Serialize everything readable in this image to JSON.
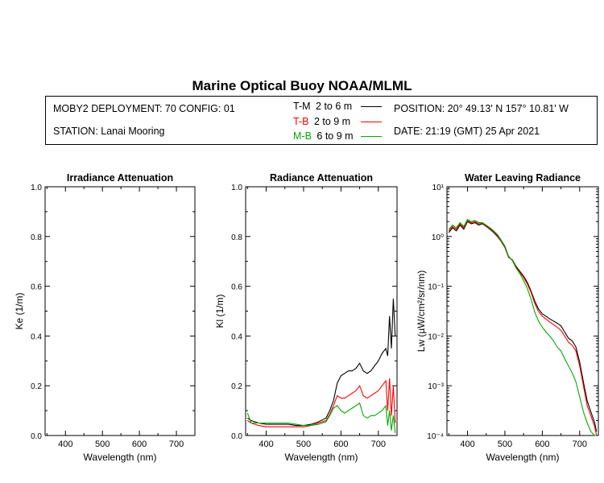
{
  "header": {
    "title": "Marine Optical Buoy NOAA/MLML",
    "deployment": "MOBY2 DEPLOYMENT: 70 CONFIG: 01",
    "station": "STATION: Lanai Mooring",
    "position": "POSITION: 20° 49.13' N   157° 10.81' W",
    "date": "DATE: 21:19 (GMT) 25 Apr 2021"
  },
  "legend": [
    {
      "code": "T-M",
      "range": "2 to 6  m",
      "color": "#000000"
    },
    {
      "code": "T-B",
      "range": "2 to 9  m",
      "color": "#ff0000"
    },
    {
      "code": "M-B",
      "range": "6 to 9  m",
      "color": "#00aa00"
    }
  ],
  "chart_data": [
    {
      "type": "line",
      "title": "Irradiance Attenuation",
      "xlabel": "Wavelength (nm)",
      "ylabel": "Ke  (1/m)",
      "xlim": [
        345,
        750
      ],
      "ylim": [
        0,
        1
      ],
      "xticks": [
        "400",
        "500",
        "600",
        "700"
      ],
      "yticks": [
        "0.0",
        "0.2",
        "0.4",
        "0.6",
        "0.8",
        "1.0"
      ],
      "series": []
    },
    {
      "type": "line",
      "title": "Radiance Attenuation",
      "xlabel": "Wavelength (nm)",
      "ylabel": "Kl  (1/m)",
      "xlim": [
        345,
        750
      ],
      "ylim": [
        0,
        1
      ],
      "xticks": [
        "400",
        "500",
        "600",
        "700"
      ],
      "yticks": [
        "0.0",
        "0.2",
        "0.4",
        "0.6",
        "0.8",
        "1.0"
      ],
      "series": [
        {
          "name": "T-M",
          "color": "#000000",
          "x": [
            350,
            360,
            380,
            400,
            420,
            440,
            460,
            480,
            500,
            520,
            540,
            560,
            570,
            580,
            590,
            600,
            610,
            620,
            630,
            640,
            650,
            660,
            670,
            680,
            690,
            700,
            710,
            720,
            725,
            730,
            735,
            740,
            745
          ],
          "y": [
            0.07,
            0.06,
            0.05,
            0.045,
            0.045,
            0.045,
            0.045,
            0.04,
            0.04,
            0.045,
            0.055,
            0.07,
            0.1,
            0.14,
            0.21,
            0.24,
            0.25,
            0.26,
            0.26,
            0.27,
            0.29,
            0.26,
            0.25,
            0.26,
            0.28,
            0.3,
            0.33,
            0.35,
            0.32,
            0.48,
            0.35,
            0.55,
            0.4
          ]
        },
        {
          "name": "T-B",
          "color": "#ff0000",
          "x": [
            350,
            360,
            380,
            400,
            420,
            440,
            460,
            480,
            500,
            520,
            540,
            560,
            570,
            580,
            590,
            600,
            610,
            620,
            630,
            640,
            650,
            660,
            670,
            680,
            690,
            700,
            710,
            720,
            725,
            730,
            735,
            740,
            745
          ],
          "y": [
            0.06,
            0.05,
            0.04,
            0.035,
            0.035,
            0.035,
            0.035,
            0.035,
            0.035,
            0.04,
            0.05,
            0.06,
            0.085,
            0.12,
            0.16,
            0.15,
            0.15,
            0.16,
            0.17,
            0.18,
            0.2,
            0.16,
            0.15,
            0.16,
            0.17,
            0.18,
            0.2,
            0.22,
            0.1,
            0.23,
            0.08,
            0.2,
            0.05
          ]
        },
        {
          "name": "M-B",
          "color": "#00aa00",
          "x": [
            350,
            360,
            380,
            400,
            420,
            440,
            460,
            480,
            500,
            520,
            540,
            560,
            570,
            580,
            590,
            600,
            610,
            620,
            630,
            640,
            650,
            660,
            670,
            680,
            690,
            700,
            710,
            720,
            725,
            730,
            735,
            740,
            745
          ],
          "y": [
            0.09,
            0.05,
            0.05,
            0.05,
            0.05,
            0.05,
            0.05,
            0.045,
            0.04,
            0.04,
            0.045,
            0.055,
            0.08,
            0.11,
            0.12,
            0.1,
            0.09,
            0.1,
            0.11,
            0.12,
            0.13,
            0.08,
            0.07,
            0.08,
            0.08,
            0.09,
            0.1,
            0.12,
            0.04,
            0.1,
            0.02,
            0.08,
            0.01
          ]
        }
      ]
    },
    {
      "type": "line",
      "title": "Water Leaving Radiance",
      "xlabel": "Wavelength (nm)",
      "ylabel": "Lw  (µW/cm²/sr/nm)",
      "xlim": [
        345,
        750
      ],
      "ylim": [
        0.0001,
        10
      ],
      "yscale": "log",
      "xticks": [
        "400",
        "500",
        "600",
        "700"
      ],
      "yticks": [
        "10⁻⁴",
        "10⁻³",
        "10⁻²",
        "10⁻¹",
        "10⁰",
        "10¹"
      ],
      "series": [
        {
          "name": "T-M",
          "color": "#000000",
          "x": [
            350,
            360,
            370,
            380,
            390,
            400,
            410,
            420,
            430,
            440,
            450,
            460,
            470,
            480,
            490,
            500,
            510,
            520,
            530,
            540,
            550,
            560,
            570,
            580,
            590,
            600,
            610,
            620,
            630,
            640,
            650,
            660,
            670,
            680,
            690,
            700,
            710,
            720,
            730,
            740,
            745
          ],
          "y": [
            1.2,
            1.5,
            1.3,
            1.7,
            1.4,
            2.0,
            1.8,
            1.9,
            1.7,
            1.8,
            1.6,
            1.4,
            1.2,
            1.0,
            0.8,
            0.6,
            0.38,
            0.34,
            0.25,
            0.2,
            0.16,
            0.12,
            0.08,
            0.05,
            0.035,
            0.028,
            0.025,
            0.022,
            0.02,
            0.018,
            0.016,
            0.012,
            0.009,
            0.008,
            0.006,
            0.003,
            0.0012,
            0.0005,
            0.0003,
            0.00018,
            0.00012
          ]
        },
        {
          "name": "T-B",
          "color": "#ff0000",
          "x": [
            350,
            360,
            370,
            380,
            390,
            400,
            410,
            420,
            430,
            440,
            450,
            460,
            470,
            480,
            490,
            500,
            510,
            520,
            530,
            540,
            550,
            560,
            570,
            580,
            590,
            600,
            610,
            620,
            630,
            640,
            650,
            660,
            670,
            680,
            690,
            700,
            710,
            720,
            730,
            740,
            745
          ],
          "y": [
            1.3,
            1.6,
            1.4,
            1.8,
            1.5,
            2.1,
            1.9,
            2.0,
            1.8,
            1.85,
            1.65,
            1.45,
            1.25,
            1.05,
            0.82,
            0.62,
            0.39,
            0.33,
            0.24,
            0.19,
            0.15,
            0.11,
            0.075,
            0.045,
            0.031,
            0.025,
            0.022,
            0.019,
            0.017,
            0.015,
            0.013,
            0.01,
            0.0075,
            0.0065,
            0.005,
            0.0025,
            0.001,
            0.0004,
            0.00025,
            0.00015,
            0.0001
          ]
        },
        {
          "name": "M-B",
          "color": "#00aa00",
          "x": [
            350,
            360,
            370,
            380,
            390,
            400,
            410,
            420,
            430,
            440,
            450,
            460,
            470,
            480,
            490,
            500,
            510,
            520,
            530,
            540,
            550,
            560,
            570,
            580,
            590,
            600,
            610,
            620,
            630,
            640,
            650,
            660,
            670,
            680,
            690,
            700,
            710,
            720,
            730,
            740,
            745
          ],
          "y": [
            1.4,
            1.7,
            1.5,
            1.9,
            1.6,
            2.2,
            2.0,
            2.1,
            1.9,
            1.9,
            1.7,
            1.5,
            1.3,
            1.1,
            0.85,
            0.64,
            0.4,
            0.33,
            0.23,
            0.18,
            0.13,
            0.09,
            0.055,
            0.03,
            0.02,
            0.015,
            0.012,
            0.01,
            0.008,
            0.006,
            0.005,
            0.0035,
            0.0025,
            0.0018,
            0.0012,
            0.0006,
            0.0003,
            0.00018,
            0.00012,
            0.0001,
            0.0001
          ]
        }
      ]
    }
  ]
}
